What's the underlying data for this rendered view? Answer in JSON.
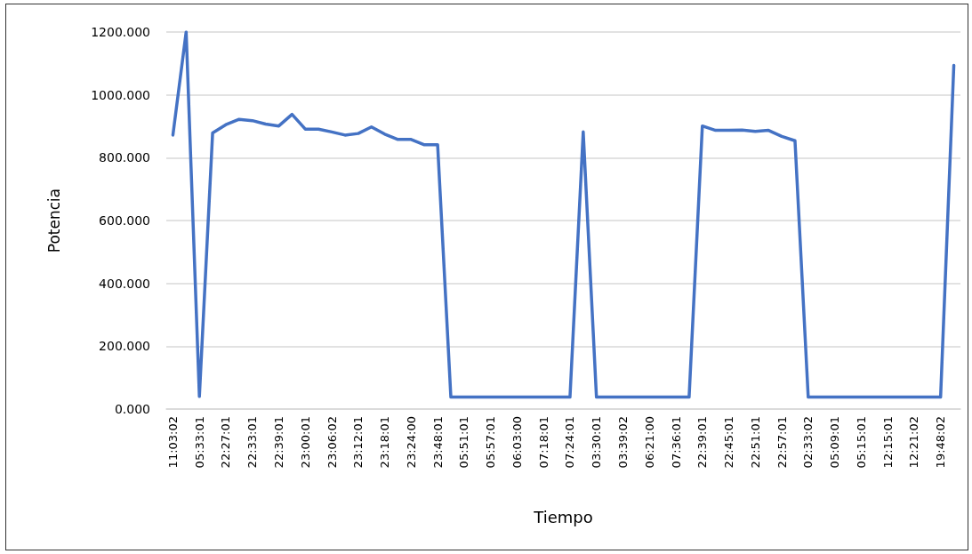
{
  "chart_data": {
    "type": "line",
    "xlabel": "Tiempo",
    "ylabel": "Potencia",
    "categories": [
      "11:03:02",
      null,
      "05:33:01",
      null,
      "22:27:01",
      null,
      "22:33:01",
      null,
      "22:39:01",
      null,
      "23:00:01",
      null,
      "23:06:02",
      null,
      "23:12:01",
      null,
      "23:18:01",
      null,
      "23:24:00",
      null,
      "23:48:01",
      null,
      "05:51:01",
      null,
      "05:57:01",
      null,
      "06:03:00",
      null,
      "07:18:01",
      null,
      "07:24:01",
      null,
      "03:30:01",
      null,
      "03:39:02",
      null,
      "06:21:00",
      null,
      "07:36:01",
      null,
      "22:39:01",
      null,
      "22:45:01",
      null,
      "22:51:01",
      null,
      "22:57:01",
      null,
      "02:33:02",
      null,
      "05:09:01",
      null,
      "05:15:01",
      null,
      "12:15:01",
      null,
      "12:21:02",
      null,
      "19:48:02",
      null
    ],
    "series": [
      {
        "color": "#4472c4",
        "values": [
          872,
          1200,
          40,
          879,
          905,
          922,
          918,
          907,
          901,
          938,
          891,
          891,
          882,
          872,
          877,
          898,
          875,
          858,
          858,
          841,
          841,
          38,
          38,
          38,
          38,
          38,
          38,
          38,
          38,
          38,
          38,
          882,
          38,
          38,
          38,
          38,
          38,
          38,
          38,
          38,
          901,
          887,
          887,
          888,
          884,
          887,
          868,
          854,
          38,
          38,
          38,
          38,
          38,
          38,
          38,
          38,
          38,
          38,
          38,
          1094
        ]
      }
    ],
    "ylim": [
      0,
      1200
    ],
    "yticks": [
      {
        "value": 0,
        "label": "0.000"
      },
      {
        "value": 200,
        "label": "200.000"
      },
      {
        "value": 400,
        "label": "400.000"
      },
      {
        "value": 600,
        "label": "600.000"
      },
      {
        "value": 800,
        "label": "800.000"
      },
      {
        "value": 1000,
        "label": "1000.000"
      },
      {
        "value": 1200,
        "label": "1200.000"
      }
    ],
    "grid": "y",
    "marker": "none",
    "line_style": "solid"
  }
}
